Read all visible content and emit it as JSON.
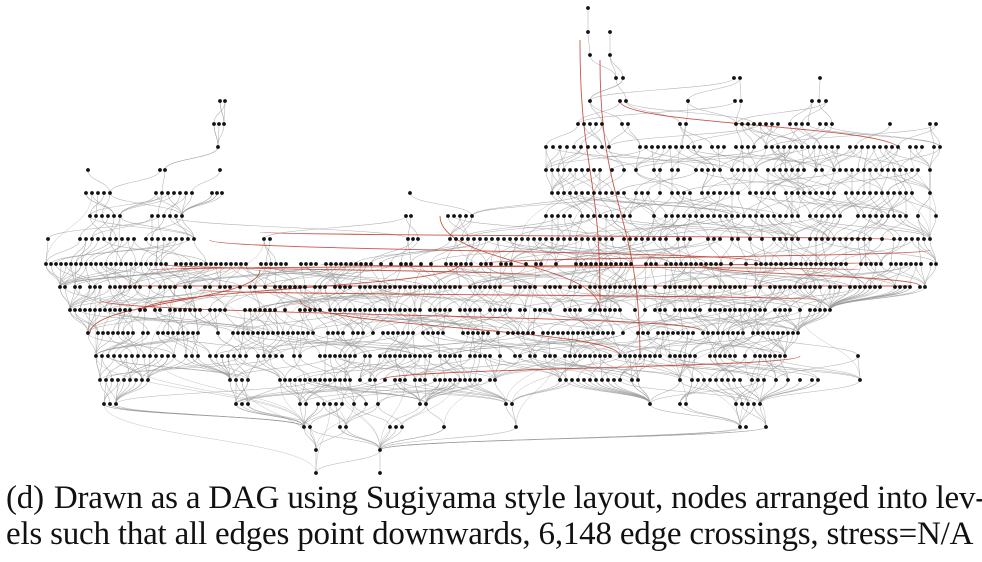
{
  "figure": {
    "label": "(d)",
    "caption_line1": "Drawn as a DAG using Sugiyama style layout, nodes arranged into lev-",
    "caption_line2": "els such that all edges point downwards, 6,148 edge crossings, stress=N/A"
  },
  "graph": {
    "layout": "sugiyama",
    "edge_color": "#9a9a9a",
    "highlight_edge_color": "#c0392b",
    "node_color": "#111111"
  }
}
